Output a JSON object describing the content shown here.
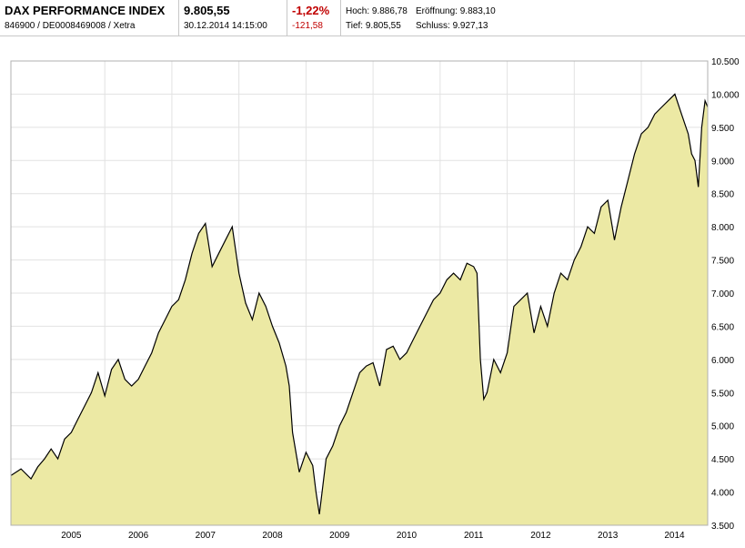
{
  "quote": {
    "name": "DAX PERFORMANCE INDEX",
    "id_line": "846900 / DE0008469008 / Xetra",
    "price": "9.805,55",
    "datetime": "30.12.2014 14:15:00",
    "change_pct": "-1,22%",
    "change_abs": "-121,58",
    "high": "Hoch: 9.886,78",
    "low": "Tief: 9.805,55",
    "open": "Eröffnung: 9.883,10",
    "close": "Schluss: 9.927,13"
  },
  "chart_data": {
    "type": "area",
    "title": "",
    "xlabel": "",
    "ylabel": "",
    "y_ticks": [
      3500,
      4000,
      4500,
      5000,
      5500,
      6000,
      6500,
      7000,
      7500,
      8000,
      8500,
      9000,
      9500,
      10000,
      10500
    ],
    "y_tick_labels": [
      "3.500",
      "4.000",
      "4.500",
      "5.000",
      "5.500",
      "6.000",
      "6.500",
      "7.000",
      "7.500",
      "8.000",
      "8.500",
      "9.000",
      "9.500",
      "10.000",
      "10.500"
    ],
    "ylim": [
      3500,
      10500
    ],
    "x_tick_labels": [
      "2005",
      "2006",
      "2007",
      "2008",
      "2009",
      "2010",
      "2011",
      "2012",
      "2013",
      "2014"
    ],
    "xlim": [
      2004.6,
      2014.99
    ],
    "grid": true,
    "line_color": "#000000",
    "fill_color": "#ece9a4",
    "x": [
      2004.6,
      2004.75,
      2004.9,
      2005.0,
      2005.1,
      2005.2,
      2005.3,
      2005.4,
      2005.5,
      2005.6,
      2005.7,
      2005.8,
      2005.9,
      2006.0,
      2006.1,
      2006.2,
      2006.3,
      2006.4,
      2006.5,
      2006.6,
      2006.7,
      2006.8,
      2006.9,
      2007.0,
      2007.1,
      2007.2,
      2007.3,
      2007.4,
      2007.5,
      2007.6,
      2007.7,
      2007.8,
      2007.9,
      2008.0,
      2008.1,
      2008.2,
      2008.3,
      2008.4,
      2008.5,
      2008.6,
      2008.7,
      2008.75,
      2008.8,
      2008.9,
      2009.0,
      2009.1,
      2009.15,
      2009.2,
      2009.3,
      2009.4,
      2009.5,
      2009.6,
      2009.7,
      2009.8,
      2009.9,
      2010.0,
      2010.1,
      2010.2,
      2010.3,
      2010.4,
      2010.5,
      2010.6,
      2010.7,
      2010.8,
      2010.9,
      2011.0,
      2011.1,
      2011.2,
      2011.3,
      2011.4,
      2011.5,
      2011.55,
      2011.6,
      2011.65,
      2011.7,
      2011.8,
      2011.9,
      2012.0,
      2012.1,
      2012.2,
      2012.3,
      2012.4,
      2012.5,
      2012.6,
      2012.7,
      2012.8,
      2012.9,
      2013.0,
      2013.1,
      2013.2,
      2013.3,
      2013.4,
      2013.5,
      2013.6,
      2013.7,
      2013.8,
      2013.9,
      2014.0,
      2014.1,
      2014.2,
      2014.3,
      2014.4,
      2014.5,
      2014.6,
      2014.7,
      2014.75,
      2014.8,
      2014.85,
      2014.9,
      2014.95,
      2014.99
    ],
    "values": [
      4250,
      4350,
      4200,
      4380,
      4500,
      4650,
      4500,
      4800,
      4900,
      5100,
      5300,
      5500,
      5800,
      5450,
      5850,
      6000,
      5700,
      5600,
      5700,
      5900,
      6100,
      6400,
      6600,
      6800,
      6900,
      7200,
      7600,
      7900,
      8050,
      7400,
      7600,
      7800,
      8000,
      7300,
      6850,
      6600,
      7000,
      6800,
      6500,
      6250,
      5900,
      5600,
      4900,
      4300,
      4600,
      4400,
      4000,
      3666,
      4500,
      4700,
      5000,
      5200,
      5500,
      5800,
      5900,
      5950,
      5600,
      6150,
      6200,
      6000,
      6100,
      6300,
      6500,
      6700,
      6900,
      7000,
      7200,
      7300,
      7200,
      7450,
      7400,
      7300,
      6000,
      5400,
      5500,
      6000,
      5800,
      6100,
      6800,
      6900,
      7000,
      6400,
      6800,
      6500,
      7000,
      7300,
      7200,
      7500,
      7700,
      8000,
      7900,
      8300,
      8400,
      7800,
      8300,
      8700,
      9100,
      9400,
      9500,
      9700,
      9800,
      9900,
      10000,
      9700,
      9400,
      9100,
      9000,
      8600,
      9500,
      9900,
      9805.55
    ]
  }
}
